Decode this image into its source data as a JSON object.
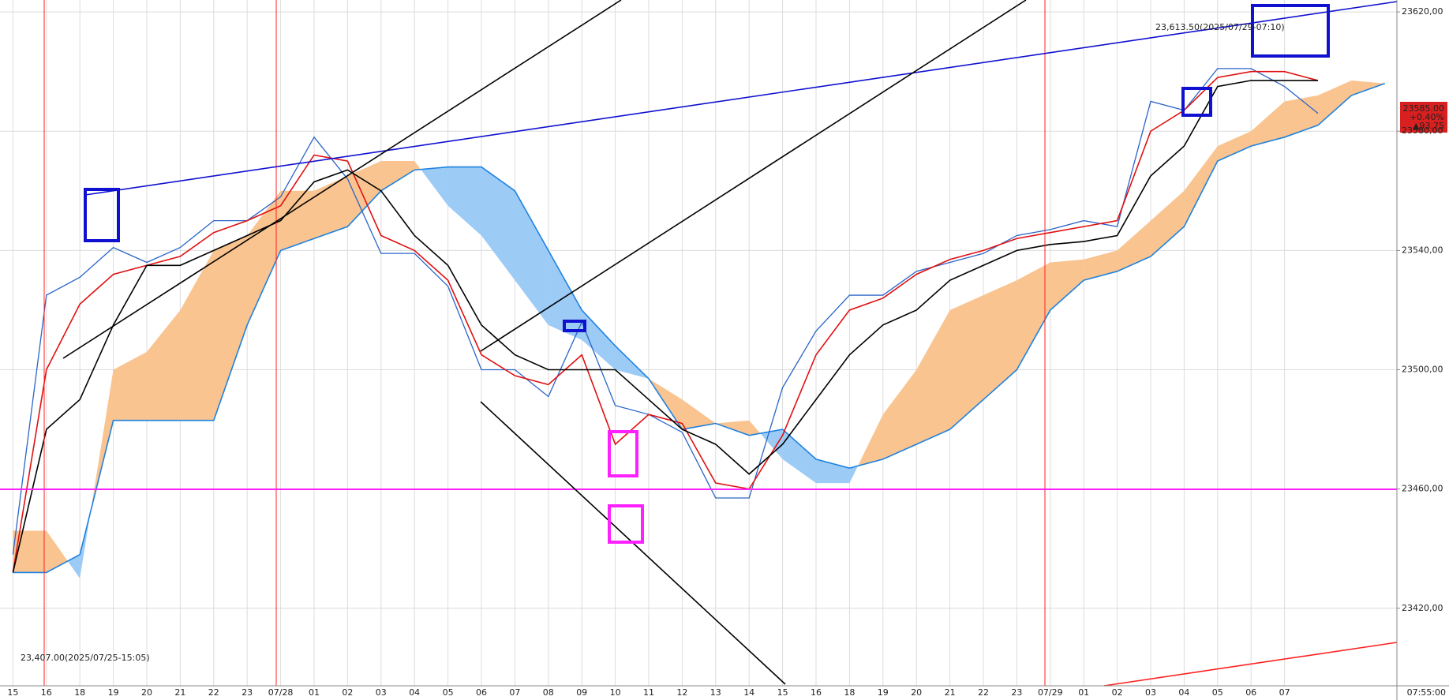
{
  "chart_data": {
    "type": "line",
    "categories": [
      "15",
      "16",
      "18",
      "19",
      "20",
      "21",
      "22",
      "23",
      "07/28",
      "01",
      "02",
      "03",
      "04",
      "05",
      "06",
      "07",
      "08",
      "09",
      "10",
      "11",
      "12",
      "13",
      "14",
      "15",
      "16",
      "18",
      "19",
      "20",
      "21",
      "22",
      "23",
      "07/29",
      "01",
      "02",
      "03",
      "04",
      "05",
      "06",
      "07",
      null,
      null,
      null
    ],
    "series": [
      {
        "color": "#2a64c8",
        "values": [
          23438,
          23525,
          23531,
          23541,
          23536,
          23541,
          23550,
          23550,
          23558,
          23578,
          23564,
          23539,
          23539,
          23528,
          23500,
          23500,
          23491,
          23516,
          23488,
          23485,
          23479,
          23457,
          23457,
          23494,
          23513,
          23525,
          23525,
          23533,
          23536,
          23539,
          23545,
          23547,
          23550,
          23548,
          23590,
          23587,
          23601,
          23601,
          23595,
          23586,
          null,
          null
        ]
      },
      {
        "color": "#e01010",
        "values": [
          23432,
          23500,
          23522,
          23532,
          23535,
          23538,
          23546,
          23550,
          23555,
          23572,
          23570,
          23545,
          23540,
          23530,
          23505,
          23498,
          23495,
          23505,
          23475,
          23485,
          23482,
          23462,
          23460,
          23478,
          23505,
          23520,
          23524,
          23532,
          23537,
          23540,
          23544,
          23546,
          23548,
          23550,
          23580,
          23587,
          23598,
          23600,
          23600,
          23597,
          null,
          null
        ]
      },
      {
        "color": "#000000",
        "values": [
          23432,
          23480,
          23490,
          23515,
          23535,
          23535,
          23540,
          23545,
          23550,
          23563,
          23567,
          23560,
          23545,
          23535,
          23515,
          23505,
          23500,
          23500,
          23500,
          23490,
          23480,
          23475,
          23465,
          23475,
          23490,
          23505,
          23515,
          23520,
          23530,
          23535,
          23540,
          23542,
          23543,
          23545,
          23565,
          23575,
          23595,
          23597,
          23597,
          23597,
          null,
          null
        ]
      }
    ],
    "cloud": {
      "span_a": [
        23446,
        23446,
        23430,
        23500,
        23506,
        23520,
        23540,
        23545,
        23560,
        23560,
        23565,
        23570,
        23570,
        23555,
        23545,
        23530,
        23515,
        23510,
        23500,
        23497,
        23490,
        23482,
        23483,
        23470,
        23462,
        23462,
        23485,
        23500,
        23520,
        23525,
        23530,
        23536,
        23537,
        23540,
        23550,
        23560,
        23575,
        23580,
        23590,
        23592,
        23597,
        23596
      ],
      "span_b": [
        23432,
        23432,
        23438,
        23483,
        23483,
        23483,
        23483,
        23515,
        23540,
        23544,
        23548,
        23560,
        23567,
        23568,
        23568,
        23560,
        23540,
        23520,
        23508,
        23497,
        23480,
        23482,
        23478,
        23480,
        23470,
        23467,
        23470,
        23475,
        23480,
        23490,
        23500,
        23520,
        23530,
        23533,
        23538,
        23548,
        23570,
        23575,
        23578,
        23582,
        23592,
        23596
      ],
      "up_color": "#f9c490",
      "down_color": "#9ccbf5",
      "span_b_color": "#1e82e0"
    },
    "ylim": [
      23394,
      23624
    ],
    "yticks": [
      {
        "value": 23420,
        "label": "23420,00"
      },
      {
        "value": 23460,
        "label": "23460,00"
      },
      {
        "value": 23500,
        "label": "23500,00"
      },
      {
        "value": 23540,
        "label": "23540,00"
      },
      {
        "value": 23580,
        "label": "23580,00"
      },
      {
        "value": 23620,
        "label": "23620,00"
      }
    ],
    "grid": true,
    "annotations": [
      {
        "text": "23,613.50(2025/07/29-07:10)",
        "color": "#e03020"
      },
      {
        "text": "23,407.00(2025/07/25-15:05)",
        "color": "#1f6fd0"
      }
    ],
    "last_price": {
      "price": "23585.00",
      "change_pct": "+0.40%",
      "change": "▲93.75"
    },
    "time": "07:55:00"
  }
}
